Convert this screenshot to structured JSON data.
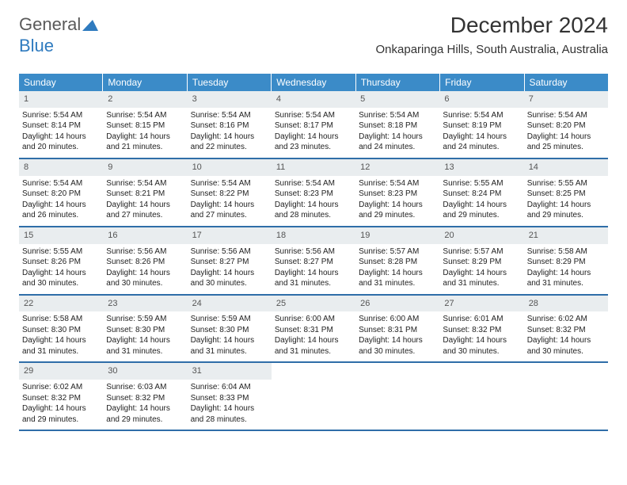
{
  "brand": {
    "part1": "General",
    "part2": "Blue"
  },
  "title": "December 2024",
  "location": "Onkaparinga Hills, South Australia, Australia",
  "colors": {
    "header_bg": "#3b8bc8",
    "header_text": "#ffffff",
    "daynum_bg": "#e9edef",
    "week_divider": "#2f6ea8",
    "brand_gray": "#5a5a5a",
    "brand_blue": "#2f7bbf"
  },
  "day_headers": [
    "Sunday",
    "Monday",
    "Tuesday",
    "Wednesday",
    "Thursday",
    "Friday",
    "Saturday"
  ],
  "weeks": [
    [
      {
        "n": "1",
        "sr": "Sunrise: 5:54 AM",
        "ss": "Sunset: 8:14 PM",
        "d1": "Daylight: 14 hours",
        "d2": "and 20 minutes."
      },
      {
        "n": "2",
        "sr": "Sunrise: 5:54 AM",
        "ss": "Sunset: 8:15 PM",
        "d1": "Daylight: 14 hours",
        "d2": "and 21 minutes."
      },
      {
        "n": "3",
        "sr": "Sunrise: 5:54 AM",
        "ss": "Sunset: 8:16 PM",
        "d1": "Daylight: 14 hours",
        "d2": "and 22 minutes."
      },
      {
        "n": "4",
        "sr": "Sunrise: 5:54 AM",
        "ss": "Sunset: 8:17 PM",
        "d1": "Daylight: 14 hours",
        "d2": "and 23 minutes."
      },
      {
        "n": "5",
        "sr": "Sunrise: 5:54 AM",
        "ss": "Sunset: 8:18 PM",
        "d1": "Daylight: 14 hours",
        "d2": "and 24 minutes."
      },
      {
        "n": "6",
        "sr": "Sunrise: 5:54 AM",
        "ss": "Sunset: 8:19 PM",
        "d1": "Daylight: 14 hours",
        "d2": "and 24 minutes."
      },
      {
        "n": "7",
        "sr": "Sunrise: 5:54 AM",
        "ss": "Sunset: 8:20 PM",
        "d1": "Daylight: 14 hours",
        "d2": "and 25 minutes."
      }
    ],
    [
      {
        "n": "8",
        "sr": "Sunrise: 5:54 AM",
        "ss": "Sunset: 8:20 PM",
        "d1": "Daylight: 14 hours",
        "d2": "and 26 minutes."
      },
      {
        "n": "9",
        "sr": "Sunrise: 5:54 AM",
        "ss": "Sunset: 8:21 PM",
        "d1": "Daylight: 14 hours",
        "d2": "and 27 minutes."
      },
      {
        "n": "10",
        "sr": "Sunrise: 5:54 AM",
        "ss": "Sunset: 8:22 PM",
        "d1": "Daylight: 14 hours",
        "d2": "and 27 minutes."
      },
      {
        "n": "11",
        "sr": "Sunrise: 5:54 AM",
        "ss": "Sunset: 8:23 PM",
        "d1": "Daylight: 14 hours",
        "d2": "and 28 minutes."
      },
      {
        "n": "12",
        "sr": "Sunrise: 5:54 AM",
        "ss": "Sunset: 8:23 PM",
        "d1": "Daylight: 14 hours",
        "d2": "and 29 minutes."
      },
      {
        "n": "13",
        "sr": "Sunrise: 5:55 AM",
        "ss": "Sunset: 8:24 PM",
        "d1": "Daylight: 14 hours",
        "d2": "and 29 minutes."
      },
      {
        "n": "14",
        "sr": "Sunrise: 5:55 AM",
        "ss": "Sunset: 8:25 PM",
        "d1": "Daylight: 14 hours",
        "d2": "and 29 minutes."
      }
    ],
    [
      {
        "n": "15",
        "sr": "Sunrise: 5:55 AM",
        "ss": "Sunset: 8:26 PM",
        "d1": "Daylight: 14 hours",
        "d2": "and 30 minutes."
      },
      {
        "n": "16",
        "sr": "Sunrise: 5:56 AM",
        "ss": "Sunset: 8:26 PM",
        "d1": "Daylight: 14 hours",
        "d2": "and 30 minutes."
      },
      {
        "n": "17",
        "sr": "Sunrise: 5:56 AM",
        "ss": "Sunset: 8:27 PM",
        "d1": "Daylight: 14 hours",
        "d2": "and 30 minutes."
      },
      {
        "n": "18",
        "sr": "Sunrise: 5:56 AM",
        "ss": "Sunset: 8:27 PM",
        "d1": "Daylight: 14 hours",
        "d2": "and 31 minutes."
      },
      {
        "n": "19",
        "sr": "Sunrise: 5:57 AM",
        "ss": "Sunset: 8:28 PM",
        "d1": "Daylight: 14 hours",
        "d2": "and 31 minutes."
      },
      {
        "n": "20",
        "sr": "Sunrise: 5:57 AM",
        "ss": "Sunset: 8:29 PM",
        "d1": "Daylight: 14 hours",
        "d2": "and 31 minutes."
      },
      {
        "n": "21",
        "sr": "Sunrise: 5:58 AM",
        "ss": "Sunset: 8:29 PM",
        "d1": "Daylight: 14 hours",
        "d2": "and 31 minutes."
      }
    ],
    [
      {
        "n": "22",
        "sr": "Sunrise: 5:58 AM",
        "ss": "Sunset: 8:30 PM",
        "d1": "Daylight: 14 hours",
        "d2": "and 31 minutes."
      },
      {
        "n": "23",
        "sr": "Sunrise: 5:59 AM",
        "ss": "Sunset: 8:30 PM",
        "d1": "Daylight: 14 hours",
        "d2": "and 31 minutes."
      },
      {
        "n": "24",
        "sr": "Sunrise: 5:59 AM",
        "ss": "Sunset: 8:30 PM",
        "d1": "Daylight: 14 hours",
        "d2": "and 31 minutes."
      },
      {
        "n": "25",
        "sr": "Sunrise: 6:00 AM",
        "ss": "Sunset: 8:31 PM",
        "d1": "Daylight: 14 hours",
        "d2": "and 31 minutes."
      },
      {
        "n": "26",
        "sr": "Sunrise: 6:00 AM",
        "ss": "Sunset: 8:31 PM",
        "d1": "Daylight: 14 hours",
        "d2": "and 30 minutes."
      },
      {
        "n": "27",
        "sr": "Sunrise: 6:01 AM",
        "ss": "Sunset: 8:32 PM",
        "d1": "Daylight: 14 hours",
        "d2": "and 30 minutes."
      },
      {
        "n": "28",
        "sr": "Sunrise: 6:02 AM",
        "ss": "Sunset: 8:32 PM",
        "d1": "Daylight: 14 hours",
        "d2": "and 30 minutes."
      }
    ],
    [
      {
        "n": "29",
        "sr": "Sunrise: 6:02 AM",
        "ss": "Sunset: 8:32 PM",
        "d1": "Daylight: 14 hours",
        "d2": "and 29 minutes."
      },
      {
        "n": "30",
        "sr": "Sunrise: 6:03 AM",
        "ss": "Sunset: 8:32 PM",
        "d1": "Daylight: 14 hours",
        "d2": "and 29 minutes."
      },
      {
        "n": "31",
        "sr": "Sunrise: 6:04 AM",
        "ss": "Sunset: 8:33 PM",
        "d1": "Daylight: 14 hours",
        "d2": "and 28 minutes."
      },
      {
        "empty": true
      },
      {
        "empty": true
      },
      {
        "empty": true
      },
      {
        "empty": true
      }
    ]
  ]
}
